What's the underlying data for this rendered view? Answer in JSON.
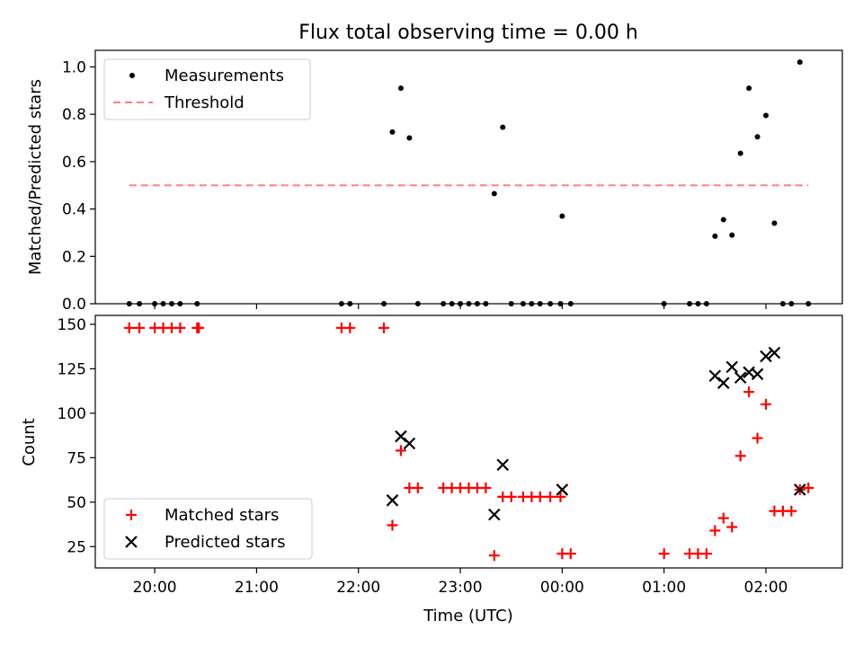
{
  "figure": {
    "title": "Flux total observing time = 0.00 h",
    "xlabel": "Time (UTC)",
    "x_tick_labels": [
      "20:00",
      "21:00",
      "22:00",
      "23:00",
      "00:00",
      "01:00",
      "02:00"
    ]
  },
  "colors": {
    "measurements": "#000000",
    "threshold": "#ff7f7f",
    "matched": "#ff0000",
    "predicted": "#000000"
  },
  "chart_data": [
    {
      "type": "scatter",
      "panel": "top",
      "ylabel": "Matched/Predicted stars",
      "x_unit": "minutes after 20:00 UTC",
      "xlim": [
        -35,
        405
      ],
      "ylim": [
        0,
        1.07
      ],
      "y_ticks": [
        "0.0",
        "0.2",
        "0.4",
        "0.6",
        "0.8",
        "1.0"
      ],
      "y_tick_values": [
        0,
        0.2,
        0.4,
        0.6,
        0.8,
        1.0
      ],
      "legend_position": "upper left",
      "legend": [
        "Measurements",
        "Threshold"
      ],
      "threshold": {
        "name": "Threshold",
        "value": 0.5,
        "x_range": [
          -15,
          385
        ],
        "style": "dashed"
      },
      "series": [
        {
          "name": "Measurements",
          "marker": "dot",
          "points": [
            [
              -15,
              0
            ],
            [
              -9,
              0
            ],
            [
              0,
              0
            ],
            [
              5,
              0
            ],
            [
              10,
              0
            ],
            [
              15,
              0
            ],
            [
              25,
              0
            ],
            [
              110,
              0
            ],
            [
              115,
              0
            ],
            [
              135,
              0
            ],
            [
              140,
              0.725
            ],
            [
              145,
              0.91
            ],
            [
              150,
              0.7
            ],
            [
              155,
              0
            ],
            [
              170,
              0
            ],
            [
              175,
              0
            ],
            [
              180,
              0
            ],
            [
              185,
              0
            ],
            [
              190,
              0
            ],
            [
              195,
              0
            ],
            [
              200,
              0.465
            ],
            [
              205,
              0.745
            ],
            [
              210,
              0
            ],
            [
              217,
              0
            ],
            [
              222,
              0
            ],
            [
              227,
              0
            ],
            [
              233,
              0
            ],
            [
              239,
              0
            ],
            [
              240,
              0.37
            ],
            [
              245,
              0
            ],
            [
              300,
              0
            ],
            [
              315,
              0
            ],
            [
              320,
              0
            ],
            [
              325,
              0
            ],
            [
              330,
              0.285
            ],
            [
              335,
              0.355
            ],
            [
              340,
              0.29
            ],
            [
              345,
              0.635
            ],
            [
              350,
              0.91
            ],
            [
              355,
              0.705
            ],
            [
              360,
              0.795
            ],
            [
              365,
              0.34
            ],
            [
              370,
              0
            ],
            [
              375,
              0
            ],
            [
              380,
              1.02
            ],
            [
              385,
              0
            ]
          ]
        }
      ]
    },
    {
      "type": "scatter",
      "panel": "bottom",
      "ylabel": "Count",
      "x_unit": "minutes after 20:00 UTC",
      "xlim": [
        -35,
        405
      ],
      "ylim": [
        13,
        155
      ],
      "y_ticks": [
        "25",
        "50",
        "75",
        "100",
        "125",
        "150"
      ],
      "y_tick_values": [
        25,
        50,
        75,
        100,
        125,
        150
      ],
      "legend_position": "lower left",
      "legend": [
        "Matched stars",
        "Predicted stars"
      ],
      "series": [
        {
          "name": "Matched stars",
          "marker": "plus",
          "points": [
            [
              -15,
              148
            ],
            [
              -9,
              148
            ],
            [
              0,
              148
            ],
            [
              5,
              148
            ],
            [
              10,
              148
            ],
            [
              15,
              148
            ],
            [
              25,
              148
            ],
            [
              26,
              148
            ],
            [
              110,
              148
            ],
            [
              115,
              148
            ],
            [
              135,
              148
            ],
            [
              140,
              37
            ],
            [
              145,
              79
            ],
            [
              150,
              58
            ],
            [
              155,
              58
            ],
            [
              170,
              58
            ],
            [
              175,
              58
            ],
            [
              180,
              58
            ],
            [
              185,
              58
            ],
            [
              190,
              58
            ],
            [
              195,
              58
            ],
            [
              200,
              20
            ],
            [
              205,
              53
            ],
            [
              210,
              53
            ],
            [
              217,
              53
            ],
            [
              222,
              53
            ],
            [
              227,
              53
            ],
            [
              233,
              53
            ],
            [
              239,
              53
            ],
            [
              240,
              21
            ],
            [
              245,
              21
            ],
            [
              300,
              21
            ],
            [
              315,
              21
            ],
            [
              320,
              21
            ],
            [
              325,
              21
            ],
            [
              330,
              34
            ],
            [
              335,
              41
            ],
            [
              340,
              36
            ],
            [
              345,
              76
            ],
            [
              350,
              112
            ],
            [
              355,
              86
            ],
            [
              360,
              105
            ],
            [
              365,
              45
            ],
            [
              370,
              45
            ],
            [
              375,
              45
            ],
            [
              380,
              57
            ],
            [
              385,
              58
            ]
          ]
        },
        {
          "name": "Predicted stars",
          "marker": "x",
          "points": [
            [
              140,
              51
            ],
            [
              145,
              87
            ],
            [
              150,
              83
            ],
            [
              200,
              43
            ],
            [
              205,
              71
            ],
            [
              240,
              57
            ],
            [
              330,
              121
            ],
            [
              335,
              117
            ],
            [
              340,
              126
            ],
            [
              345,
              120
            ],
            [
              350,
              123
            ],
            [
              355,
              122
            ],
            [
              360,
              132
            ],
            [
              365,
              134
            ],
            [
              380,
              57
            ]
          ]
        }
      ]
    }
  ]
}
